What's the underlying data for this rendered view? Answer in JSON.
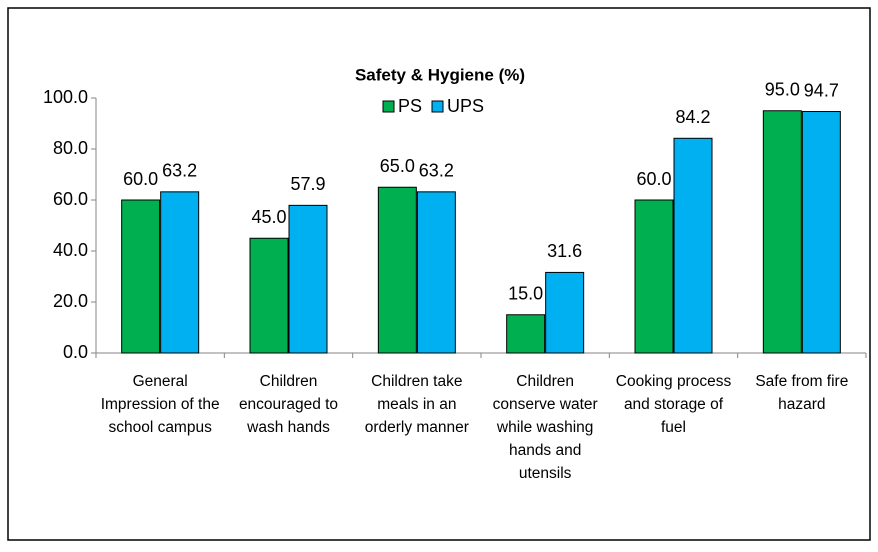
{
  "chart_data": {
    "type": "bar",
    "title": "Safety & Hygiene (%)",
    "categories": [
      "General Impression of the school campus",
      "Children encouraged to wash hands",
      "Children take meals in an orderly manner",
      "Children conserve water while washing hands and utensils",
      "Cooking process and storage of fuel",
      "Safe from fire hazard"
    ],
    "series": [
      {
        "name": "PS",
        "color": "#00b050",
        "values": [
          60,
          45,
          65,
          15,
          60,
          95
        ],
        "value_labels": [
          "60.0",
          "45.0",
          "65.0",
          "15.0",
          "60.0",
          "95.0"
        ]
      },
      {
        "name": "UPS",
        "color": "#00b0f0",
        "values": [
          63.2,
          57.9,
          63.2,
          31.6,
          84.2,
          94.7
        ],
        "value_labels": [
          "63.2",
          "57.9",
          "63.2",
          "31.6",
          "84.2",
          "94.7"
        ]
      }
    ],
    "ylim": [
      0,
      100
    ],
    "yticks": [
      {
        "value": 0,
        "label": "0.0"
      },
      {
        "value": 20,
        "label": "20.0"
      },
      {
        "value": 40,
        "label": "40.0"
      },
      {
        "value": 60,
        "label": "60.0"
      },
      {
        "value": 80,
        "label": "80.0"
      },
      {
        "value": 100,
        "label": "100.0"
      }
    ],
    "legend": "top",
    "grid": false
  }
}
